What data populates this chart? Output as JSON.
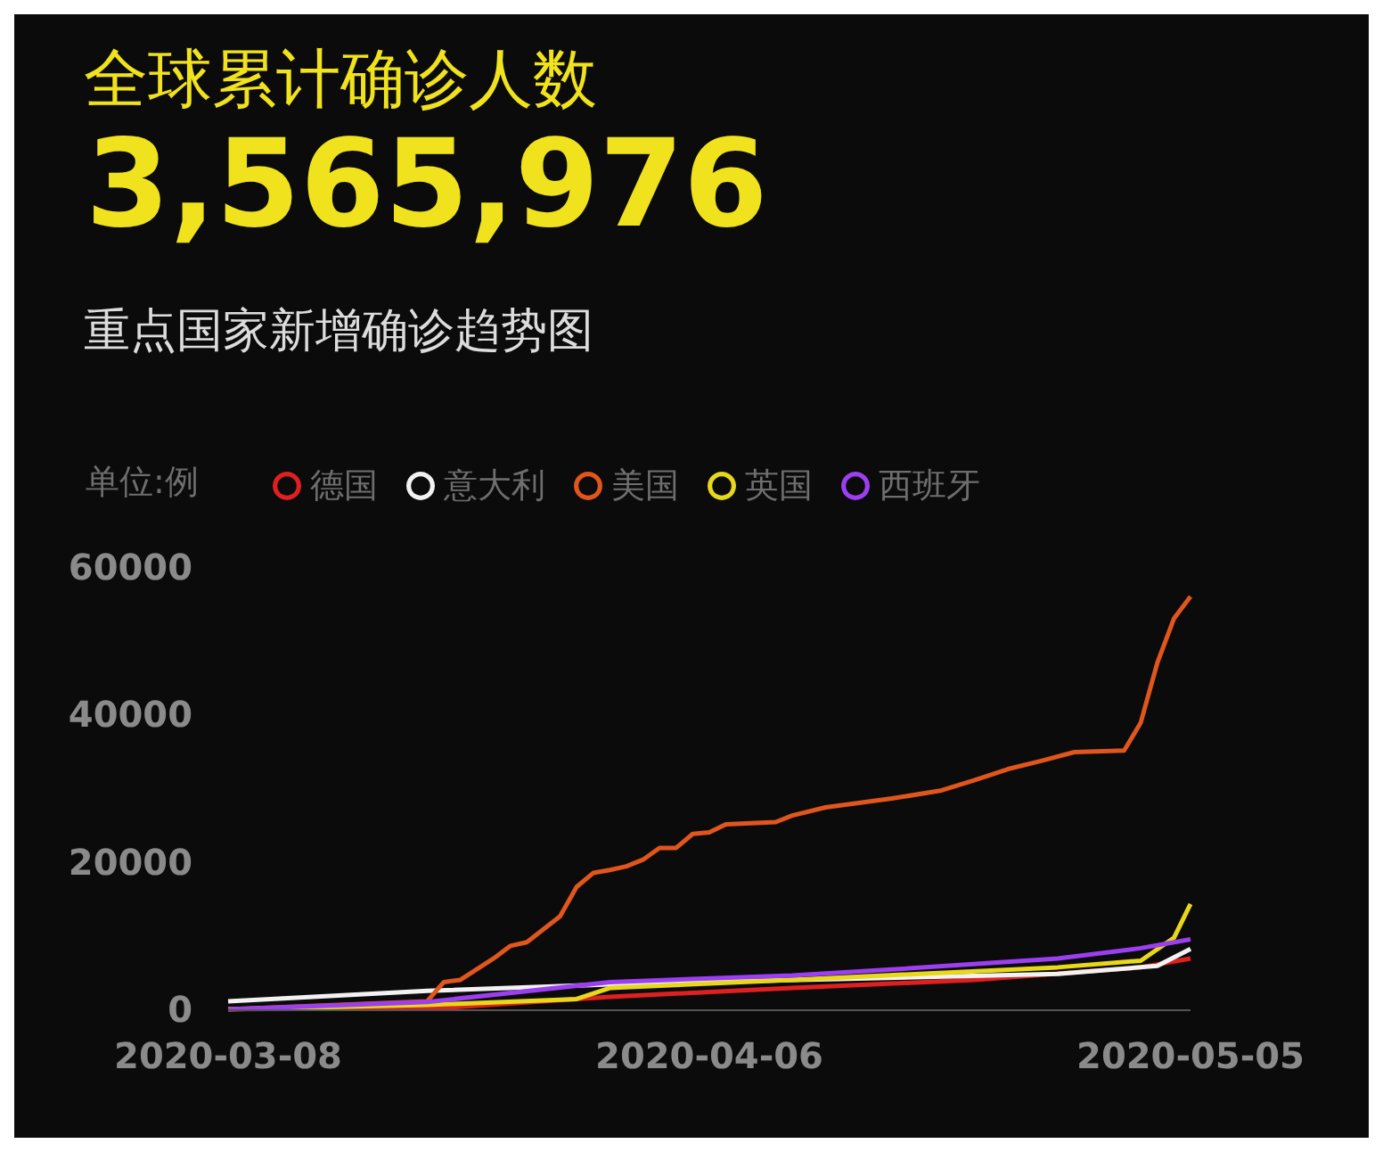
{
  "chart_data": {
    "type": "line",
    "title": "全球累计确诊人数",
    "subtitle": "重点国家新增确诊趋势图",
    "ylabel": "单位:例",
    "annotations": [
      "3,565,976"
    ],
    "xlim": [
      "2020-03-08",
      "2020-05-05"
    ],
    "xticks": [
      "2020-03-08",
      "2020-04-06",
      "2020-05-05"
    ],
    "ylim": [
      0,
      60000
    ],
    "yticks": [
      0,
      20000,
      40000,
      60000
    ],
    "legend": "top left",
    "marker": "none",
    "line_style": "solid",
    "series": [
      {
        "name": "德国",
        "color": "#e02020",
        "x": [
          "2020-03-08",
          "2020-03-21",
          "2020-03-31",
          "2020-04-11",
          "2020-04-22",
          "2020-05-02",
          "2020-05-05"
        ],
        "values": [
          0,
          200,
          1700,
          2900,
          4000,
          5700,
          6900
        ]
      },
      {
        "name": "意大利",
        "color": "#f2f2f2",
        "x": [
          "2020-03-08",
          "2020-03-20",
          "2020-03-31",
          "2020-04-27",
          "2020-05-03",
          "2020-05-05"
        ],
        "values": [
          1100,
          2500,
          3400,
          4800,
          5900,
          8200
        ]
      },
      {
        "name": "美国",
        "color": "#e0561c",
        "x": [
          "2020-03-08",
          "2020-03-20",
          "2020-03-21",
          "2020-03-22",
          "2020-03-24",
          "2020-03-25",
          "2020-03-26",
          "2020-03-28",
          "2020-03-29",
          "2020-03-30",
          "2020-03-31",
          "2020-04-01",
          "2020-04-02",
          "2020-04-03",
          "2020-04-04",
          "2020-04-05",
          "2020-04-06",
          "2020-04-07",
          "2020-04-10",
          "2020-04-11",
          "2020-04-13",
          "2020-04-17",
          "2020-04-20",
          "2020-04-22",
          "2020-04-24",
          "2020-04-26",
          "2020-04-28",
          "2020-05-01",
          "2020-05-02",
          "2020-05-03",
          "2020-05-04",
          "2020-05-05"
        ],
        "values": [
          0,
          1100,
          3700,
          4000,
          6900,
          8600,
          9100,
          12600,
          16600,
          18500,
          18900,
          19400,
          20300,
          21900,
          21900,
          23800,
          24000,
          25100,
          25400,
          26300,
          27400,
          28600,
          29700,
          31100,
          32600,
          33700,
          34900,
          35100,
          38900,
          47000,
          53000,
          56000
        ]
      },
      {
        "name": "英国",
        "color": "#e8d81a",
        "x": [
          "2020-03-08",
          "2020-03-20",
          "2020-03-29",
          "2020-03-31",
          "2020-04-11",
          "2020-04-27",
          "2020-05-02",
          "2020-05-04",
          "2020-05-05"
        ],
        "values": [
          0,
          600,
          1400,
          2900,
          4000,
          5700,
          6600,
          9700,
          14300
        ]
      },
      {
        "name": "西班牙",
        "color": "#9b3ff0",
        "x": [
          "2020-03-08",
          "2020-03-20",
          "2020-03-31",
          "2020-04-11",
          "2020-04-17",
          "2020-04-27",
          "2020-05-02",
          "2020-05-05"
        ],
        "values": [
          0,
          1000,
          3700,
          4600,
          5400,
          6900,
          8300,
          9500
        ]
      }
    ]
  }
}
